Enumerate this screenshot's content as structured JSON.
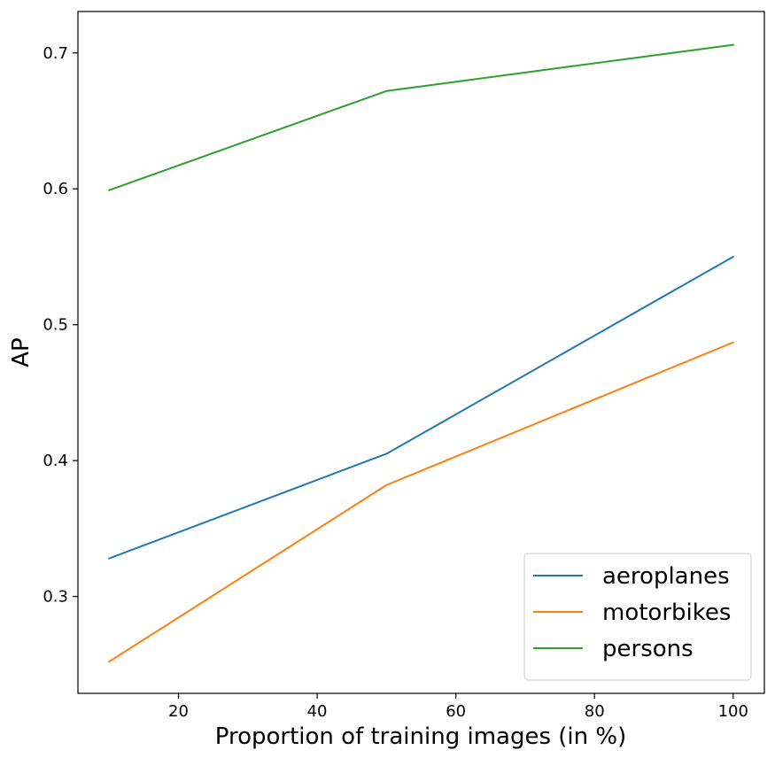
{
  "chart_data": {
    "type": "line",
    "title": "",
    "xlabel": "Proportion of training images (in %)",
    "ylabel": "AP",
    "x": [
      10,
      50,
      100
    ],
    "xlim": [
      5.5,
      104.5
    ],
    "ylim": [
      0.2287,
      0.7305
    ],
    "xticks": [
      20,
      40,
      60,
      80,
      100
    ],
    "xtick_labels": [
      "20",
      "40",
      "60",
      "80",
      "100"
    ],
    "yticks": [
      0.3,
      0.4,
      0.5,
      0.6,
      0.7
    ],
    "ytick_labels": [
      "0.3",
      "0.4",
      "0.5",
      "0.6",
      "0.7"
    ],
    "grid": false,
    "legend_position": "bottom-right",
    "series": [
      {
        "name": "aeroplanes",
        "color": "#1f77b4",
        "values": [
          0.328,
          0.405,
          0.55
        ]
      },
      {
        "name": "motorbikes",
        "color": "#ff7f0e",
        "values": [
          0.252,
          0.382,
          0.487
        ]
      },
      {
        "name": "persons",
        "color": "#2ca02c",
        "values": [
          0.599,
          0.672,
          0.706
        ]
      }
    ]
  }
}
